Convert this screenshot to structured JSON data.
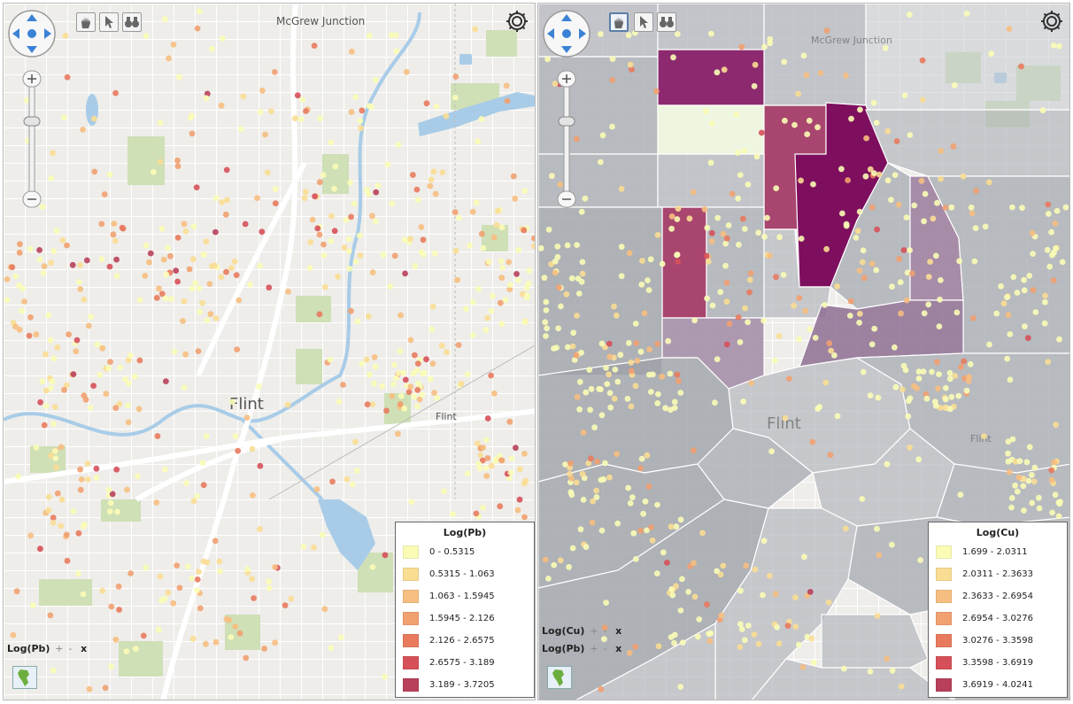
{
  "left": {
    "labels": {
      "city": "Flint",
      "place": "McGrew Junction",
      "smalltown": "Flint"
    },
    "legend": {
      "title": "Log(Pb)",
      "items": [
        {
          "label": "0 - 0.5315",
          "color": "#fafcb6"
        },
        {
          "label": "0.5315 - 1.063",
          "color": "#f9dd93"
        },
        {
          "label": "1.063 - 1.5945",
          "color": "#f6be81"
        },
        {
          "label": "1.5945 - 2.126",
          "color": "#f1a070"
        },
        {
          "label": "2.126 - 2.6575",
          "color": "#e87a5e"
        },
        {
          "label": "2.6575 - 3.189",
          "color": "#d6505a"
        },
        {
          "label": "3.189 - 3.7205",
          "color": "#b8405a"
        }
      ]
    },
    "layers": [
      {
        "name": "Log(Pb)",
        "plus": "+",
        "minus": "-",
        "close": "x"
      }
    ]
  },
  "right": {
    "labels": {
      "city": "Flint",
      "place": "McGrew Junction",
      "smalltown": "Flint"
    },
    "legend": {
      "title": "Log(Cu)",
      "items": [
        {
          "label": "1.699 - 2.0311",
          "color": "#fafcb6"
        },
        {
          "label": "2.0311 - 2.3633",
          "color": "#f9dd93"
        },
        {
          "label": "2.3633 - 2.6954",
          "color": "#f6be81"
        },
        {
          "label": "2.6954 - 3.0276",
          "color": "#f1a070"
        },
        {
          "label": "3.0276 - 3.3598",
          "color": "#e87a5e"
        },
        {
          "label": "3.3598 - 3.6919",
          "color": "#d6505a"
        },
        {
          "label": "3.6919 - 4.0241",
          "color": "#b8405a"
        }
      ]
    },
    "layers": [
      {
        "name": "Log(Cu)",
        "plus": "+",
        "minus": "-",
        "close": "x"
      },
      {
        "name": "Log(Pb)",
        "plus": "+",
        "minus": "-",
        "close": "x"
      }
    ]
  }
}
